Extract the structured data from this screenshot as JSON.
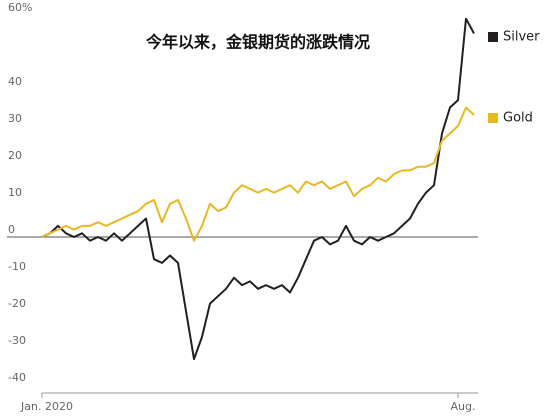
{
  "chart_data": {
    "type": "line",
    "title": "今年以来，金银期货的涨跌情况",
    "categories": [
      "Jan. 2020",
      null,
      null,
      null,
      null,
      null,
      null,
      null,
      null,
      null,
      null,
      null,
      null,
      null,
      null,
      null,
      null,
      null,
      null,
      null,
      null,
      null,
      null,
      null,
      null,
      null,
      null,
      null,
      null,
      null,
      null,
      null,
      null,
      null,
      null,
      null,
      null,
      null,
      null,
      null,
      null,
      null,
      null,
      null,
      null,
      null,
      null,
      null,
      null,
      null,
      null,
      null,
      "Aug.",
      null,
      null
    ],
    "series": [
      {
        "name": "Silver",
        "color": "#231f20",
        "values": [
          0,
          1,
          3,
          1,
          0,
          1,
          -1,
          0,
          -1,
          1,
          -1,
          1,
          3,
          5,
          -6,
          -7,
          -5,
          -7,
          -20,
          -33,
          -27,
          -18,
          -16,
          -14,
          -11,
          -13,
          -12,
          -14,
          -13,
          -14,
          -13,
          -15,
          -11,
          -6,
          -1,
          0,
          -2,
          -1,
          3,
          -1,
          -2,
          0,
          -1,
          0,
          1,
          3,
          5,
          9,
          12,
          14,
          28,
          35,
          37,
          59,
          55
        ]
      },
      {
        "name": "Gold",
        "color": "#e8b821",
        "values": [
          0,
          1,
          2,
          3,
          2,
          3,
          3,
          4,
          3,
          4,
          5,
          6,
          7,
          9,
          10,
          4,
          9,
          10,
          5,
          -1,
          3,
          9,
          7,
          8,
          12,
          14,
          13,
          12,
          13,
          12,
          13,
          14,
          12,
          15,
          14,
          15,
          13,
          14,
          15,
          11,
          13,
          14,
          16,
          15,
          17,
          18,
          18,
          19,
          19,
          20,
          26,
          28,
          30,
          35,
          33
        ]
      }
    ],
    "ylim": [
      -40,
      60
    ],
    "yticks": [
      -40,
      -30,
      -20,
      -10,
      0,
      10,
      20,
      30,
      40,
      {
        "value": 60,
        "label": "60%"
      }
    ],
    "zero_line": true
  }
}
